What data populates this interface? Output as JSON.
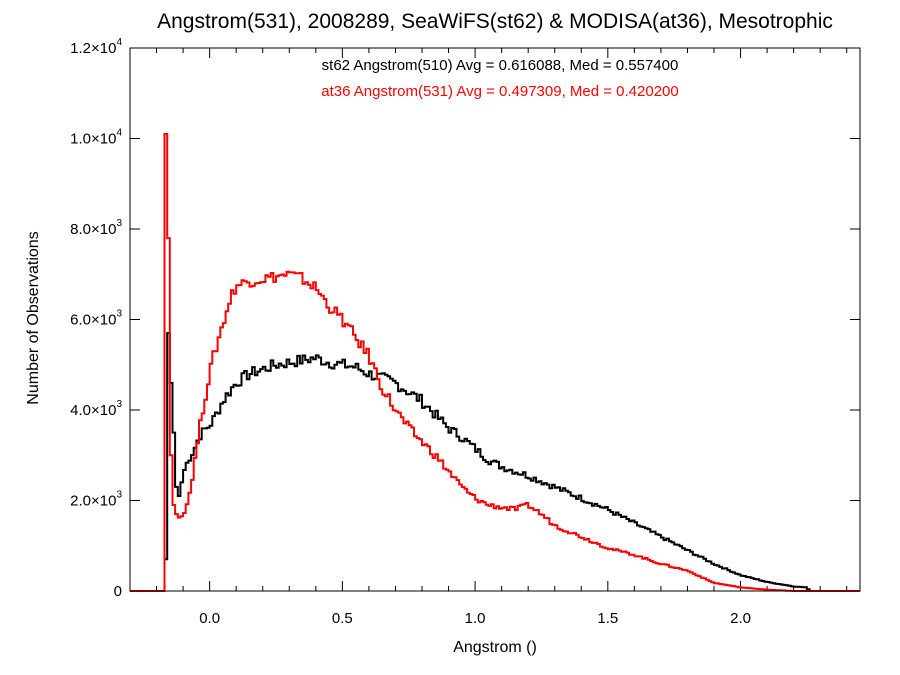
{
  "chart_data": {
    "type": "line",
    "title": "Angstrom(531), 2008289, SeaWiFS(st62) & MODISA(at36), Mesotrophic",
    "xlabel": "Angstrom ()",
    "ylabel": "Number of Observations",
    "xlim": [
      -0.3,
      2.45
    ],
    "ylim": [
      0,
      12000
    ],
    "x_ticks": [
      {
        "value": 0.0,
        "label": "0.0"
      },
      {
        "value": 0.5,
        "label": "0.5"
      },
      {
        "value": 1.0,
        "label": "1.0"
      },
      {
        "value": 1.5,
        "label": "1.5"
      },
      {
        "value": 2.0,
        "label": "2.0"
      }
    ],
    "y_ticks": [
      {
        "value": 0,
        "mantissa": "0",
        "exp": ""
      },
      {
        "value": 2000,
        "mantissa": "2.0×10",
        "exp": "3"
      },
      {
        "value": 4000,
        "mantissa": "4.0×10",
        "exp": "3"
      },
      {
        "value": 6000,
        "mantissa": "6.0×10",
        "exp": "3"
      },
      {
        "value": 8000,
        "mantissa": "8.0×10",
        "exp": "3"
      },
      {
        "value": 10000,
        "mantissa": "1.0×10",
        "exp": "4"
      },
      {
        "value": 12000,
        "mantissa": "1.2×10",
        "exp": "4"
      }
    ],
    "grid": false,
    "step_histogram": true,
    "annotations": [
      {
        "text": "st62 Angstrom(510) Avg = 0.616088, Med = 0.557400",
        "color": "#000000"
      },
      {
        "text": "at36 Angstrom(531) Avg = 0.497309, Med = 0.420200",
        "color": "#ff0000"
      }
    ],
    "series": [
      {
        "color": "#000000",
        "x": [
          -0.3,
          -0.17,
          -0.165,
          -0.16,
          -0.155,
          -0.15,
          -0.145,
          -0.14,
          -0.135,
          -0.13,
          -0.125,
          -0.12,
          -0.11,
          -0.1,
          -0.08,
          -0.06,
          -0.04,
          -0.02,
          0.0,
          0.02,
          0.05,
          0.08,
          0.1,
          0.15,
          0.2,
          0.25,
          0.3,
          0.35,
          0.4,
          0.45,
          0.5,
          0.55,
          0.6,
          0.65,
          0.7,
          0.75,
          0.8,
          0.85,
          0.9,
          0.95,
          1.0,
          1.05,
          1.1,
          1.15,
          1.2,
          1.3,
          1.4,
          1.5,
          1.6,
          1.7,
          1.8,
          1.9,
          2.0,
          2.1,
          2.2,
          2.25,
          2.26,
          2.45
        ],
        "values": [
          0,
          0,
          700,
          5500,
          5700,
          5900,
          4600,
          4300,
          3500,
          2800,
          2300,
          2000,
          2200,
          2600,
          2900,
          3100,
          3400,
          3550,
          3650,
          3850,
          4200,
          4450,
          4600,
          4800,
          4900,
          5000,
          5050,
          5100,
          5150,
          5050,
          5000,
          4950,
          4800,
          4700,
          4600,
          4400,
          4200,
          3900,
          3600,
          3400,
          3150,
          2900,
          2750,
          2650,
          2550,
          2300,
          2050,
          1800,
          1500,
          1200,
          900,
          600,
          350,
          200,
          100,
          80,
          0,
          0
        ]
      },
      {
        "color": "#ff0000",
        "x": [
          -0.3,
          -0.17,
          -0.165,
          -0.16,
          -0.155,
          -0.15,
          -0.145,
          -0.14,
          -0.135,
          -0.13,
          -0.125,
          -0.12,
          -0.11,
          -0.1,
          -0.08,
          -0.06,
          -0.04,
          -0.02,
          0.0,
          0.02,
          0.05,
          0.08,
          0.1,
          0.15,
          0.2,
          0.25,
          0.3,
          0.35,
          0.4,
          0.45,
          0.5,
          0.55,
          0.6,
          0.65,
          0.7,
          0.75,
          0.8,
          0.85,
          0.9,
          0.95,
          1.0,
          1.05,
          1.1,
          1.15,
          1.2,
          1.25,
          1.3,
          1.4,
          1.5,
          1.6,
          1.7,
          1.8,
          1.9,
          2.0,
          2.1,
          2.2,
          2.45
        ],
        "values": [
          0,
          0,
          10100,
          5800,
          7800,
          4600,
          3000,
          2200,
          1900,
          1700,
          1700,
          1650,
          1600,
          1700,
          2000,
          2700,
          3500,
          4200,
          4800,
          5300,
          5900,
          6500,
          6750,
          6850,
          6900,
          6950,
          7000,
          6900,
          6700,
          6300,
          6000,
          5600,
          5200,
          4500,
          4000,
          3600,
          3300,
          3000,
          2650,
          2300,
          2050,
          1900,
          1850,
          1800,
          1900,
          1700,
          1450,
          1200,
          950,
          800,
          600,
          450,
          180,
          80,
          30,
          0,
          0
        ]
      }
    ]
  }
}
